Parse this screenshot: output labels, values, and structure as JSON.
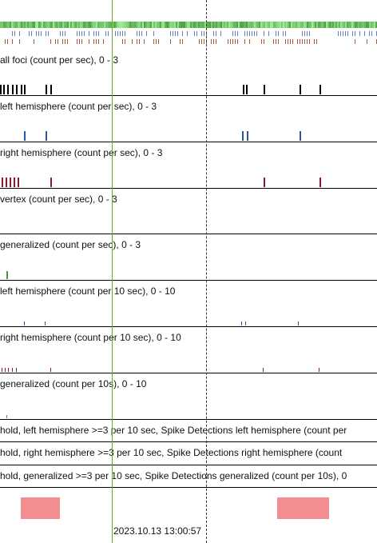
{
  "colors": {
    "black": "#000000",
    "blue": "#2a56a8",
    "red": "#8b1a2e",
    "green": "#3aa02a",
    "event": "#f28e92",
    "cursor_green": "#6aaa1e"
  },
  "tracks": [
    {
      "label": "all foci (count per sec), 0 - 3",
      "color": "black"
    },
    {
      "label": "left hemisphere (count per sec), 0 - 3",
      "color": "blue"
    },
    {
      "label": "right hemisphere (count per sec), 0 - 3",
      "color": "red"
    },
    {
      "label": "vertex (count per sec), 0 - 3",
      "color": "black"
    },
    {
      "label": "generalized (count per sec), 0 - 3",
      "color": "green"
    },
    {
      "label": "left hemisphere (count per 10 sec), 0 - 10",
      "color": "blue"
    },
    {
      "label": "right hemisphere (count per 10 sec), 0 - 10",
      "color": "red"
    },
    {
      "label": "generalized (count per 10s), 0 - 10",
      "color": "green"
    },
    {
      "label": "hold, left hemisphere >=3 per 10 sec, Spike Detections left hemisphere (count per",
      "color": "black"
    },
    {
      "label": "hold, right hemisphere >=3 per 10 sec, Spike Detections right hemisphere (count",
      "color": "black"
    },
    {
      "label": "hold, generalized >=3 per 10 sec, Spike Detections generalized (count per 10s), 0",
      "color": "black"
    }
  ],
  "cursor": {
    "timestamp": "2023.10.13 13:00:57"
  }
}
